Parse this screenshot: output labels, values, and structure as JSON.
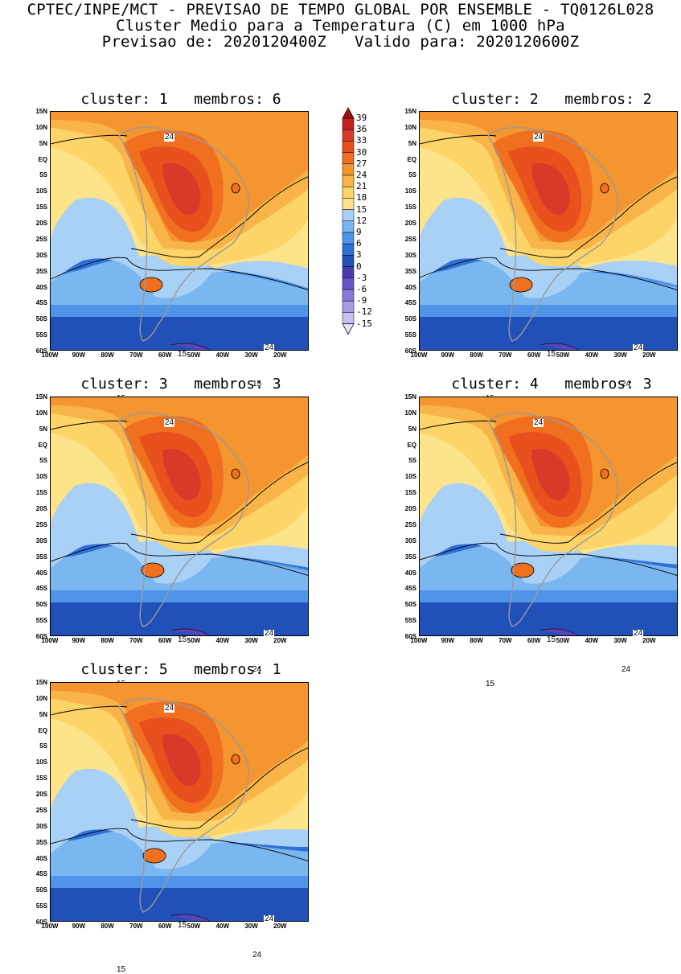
{
  "header": {
    "line1": "CPTEC/INPE/MCT - PREVISAO DE TEMPO GLOBAL POR ENSEMBLE - TQ0126L028",
    "line2": "Cluster Medio para a Temperatura (C) em 1000 hPa",
    "line3": "Previsao de: 2020120400Z   Valido para: 2020120600Z"
  },
  "panels": [
    {
      "title": "cluster: 1   membros: 6",
      "labels": [
        "24",
        "24",
        "15",
        "15",
        "15"
      ]
    },
    {
      "title": "cluster: 2   membros: 2",
      "labels": [
        "24",
        "24",
        "24",
        "15",
        "15"
      ]
    },
    {
      "title": "cluster: 3   membros: 3",
      "labels": [
        "24",
        "24",
        "24",
        "15",
        "15"
      ]
    },
    {
      "title": "cluster: 4   membros: 3",
      "labels": [
        "24",
        "24",
        "24",
        "15",
        "15"
      ]
    },
    {
      "title": "cluster: 5   membros: 1",
      "labels": [
        "24",
        "24",
        "24",
        "15",
        "15"
      ]
    }
  ],
  "lat_labels": [
    "15N",
    "10N",
    "5N",
    "EQ",
    "5S",
    "10S",
    "15S",
    "20S",
    "25S",
    "30S",
    "35S",
    "40S",
    "45S",
    "50S",
    "55S",
    "60S"
  ],
  "lon_labels": [
    "100W",
    "90W",
    "80W",
    "70W",
    "60W",
    "50W",
    "40W",
    "30W",
    "20W"
  ],
  "colorbar": {
    "labels": [
      "39",
      "36",
      "33",
      "30",
      "27",
      "24",
      "21",
      "18",
      "15",
      "12",
      "9",
      "6",
      "3",
      "0",
      "-3",
      "-6",
      "-9",
      "-12",
      "-15"
    ],
    "colors": [
      "#a01010",
      "#c02020",
      "#d83a2a",
      "#e8501e",
      "#f07020",
      "#f59530",
      "#f8b448",
      "#fcd468",
      "#fde48a",
      "#a9d0f5",
      "#7ab6f0",
      "#4f94e8",
      "#2f6fd8",
      "#2050b8",
      "#4a3ab0",
      "#6a55c8",
      "#8a78d8",
      "#a89ae4",
      "#c9c0ef",
      "#e6e0f8"
    ]
  }
}
